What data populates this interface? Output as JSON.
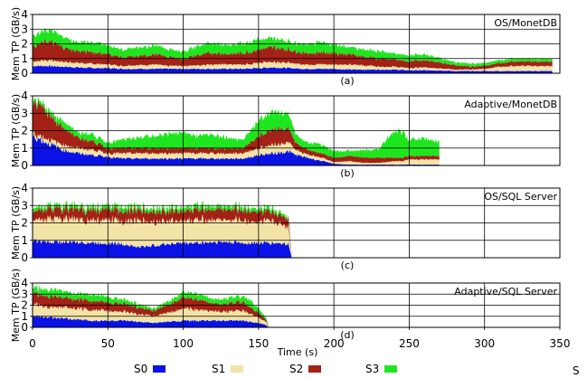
{
  "chart_data": [
    {
      "type": "area",
      "title": "OS/MonetDB",
      "caption": "(a)",
      "ylabel": "Mem TP (GB/s)",
      "ylim": [
        0,
        4
      ],
      "yticks": [
        "0",
        "1",
        "2",
        "3",
        "4"
      ],
      "xlim": [
        0,
        350
      ],
      "grid": true,
      "stacked": true,
      "x": [
        0,
        10,
        20,
        30,
        40,
        50,
        60,
        70,
        80,
        90,
        100,
        110,
        120,
        130,
        140,
        150,
        160,
        170,
        180,
        190,
        200,
        210,
        220,
        230,
        240,
        250,
        260,
        270,
        280,
        290,
        300,
        310,
        320,
        330,
        340,
        345
      ],
      "series": [
        {
          "name": "S0",
          "values": [
            0.5,
            0.5,
            0.45,
            0.4,
            0.35,
            0.35,
            0.3,
            0.3,
            0.3,
            0.3,
            0.3,
            0.3,
            0.3,
            0.3,
            0.3,
            0.35,
            0.4,
            0.35,
            0.3,
            0.3,
            0.3,
            0.25,
            0.25,
            0.25,
            0.25,
            0.2,
            0.2,
            0.2,
            0.15,
            0.15,
            0.15,
            0.15,
            0.15,
            0.15,
            0.15,
            0.15
          ]
        },
        {
          "name": "S1",
          "values": [
            0.3,
            0.4,
            0.35,
            0.3,
            0.3,
            0.25,
            0.2,
            0.25,
            0.3,
            0.2,
            0.2,
            0.25,
            0.3,
            0.3,
            0.3,
            0.35,
            0.4,
            0.35,
            0.3,
            0.3,
            0.3,
            0.35,
            0.3,
            0.2,
            0.2,
            0.15,
            0.2,
            0.15,
            0.1,
            0.1,
            0.15,
            0.3,
            0.35,
            0.35,
            0.35,
            0.35
          ]
        },
        {
          "name": "S2",
          "values": [
            1.0,
            1.3,
            1.0,
            0.8,
            0.8,
            0.7,
            0.6,
            0.6,
            0.7,
            0.6,
            0.5,
            0.7,
            0.8,
            0.7,
            0.8,
            0.9,
            1.0,
            0.9,
            0.8,
            0.8,
            0.8,
            0.7,
            0.6,
            0.55,
            0.5,
            0.45,
            0.5,
            0.4,
            0.3,
            0.2,
            0.2,
            0.25,
            0.3,
            0.3,
            0.3,
            0.3
          ]
        },
        {
          "name": "S3",
          "values": [
            0.7,
            0.8,
            0.7,
            0.6,
            0.7,
            0.6,
            0.5,
            0.6,
            0.6,
            0.5,
            0.5,
            0.6,
            0.7,
            0.6,
            0.7,
            0.7,
            0.6,
            0.6,
            0.6,
            0.7,
            0.6,
            0.5,
            0.5,
            0.5,
            0.4,
            0.4,
            0.4,
            0.3,
            0.2,
            0.2,
            0.2,
            0.2,
            0.2,
            0.2,
            0.2,
            0.2
          ]
        }
      ]
    },
    {
      "type": "area",
      "title": "Adaptive/MonetDB",
      "caption": "(b)",
      "ylabel": "Mem TP (GB/s)",
      "ylim": [
        0,
        4
      ],
      "yticks": [
        "0",
        "1",
        "2",
        "3",
        "4"
      ],
      "xlim": [
        0,
        350
      ],
      "grid": true,
      "stacked": true,
      "x": [
        0,
        5,
        10,
        15,
        20,
        30,
        40,
        50,
        60,
        70,
        80,
        90,
        100,
        110,
        120,
        130,
        140,
        150,
        160,
        170,
        175,
        180,
        190,
        200,
        210,
        220,
        230,
        240,
        245,
        250,
        255,
        260,
        270
      ],
      "series": [
        {
          "name": "S0",
          "values": [
            1.7,
            1.5,
            1.3,
            1.1,
            0.9,
            0.7,
            0.6,
            0.5,
            0.4,
            0.4,
            0.4,
            0.4,
            0.4,
            0.4,
            0.4,
            0.4,
            0.4,
            0.6,
            0.7,
            0.8,
            0.6,
            0.5,
            0.3,
            0.1,
            0.05,
            0.05,
            0.05,
            0.05,
            0.05,
            0.05,
            0.05,
            0.05,
            0.05
          ]
        },
        {
          "name": "S1",
          "values": [
            0.2,
            0.2,
            0.25,
            0.25,
            0.3,
            0.3,
            0.3,
            0.2,
            0.3,
            0.3,
            0.3,
            0.3,
            0.3,
            0.3,
            0.3,
            0.3,
            0.3,
            0.4,
            0.5,
            0.5,
            0.3,
            0.2,
            0.2,
            0.1,
            0.2,
            0.1,
            0.1,
            0.2,
            0.2,
            0.3,
            0.3,
            0.3,
            0.3
          ]
        },
        {
          "name": "S2",
          "values": [
            1.8,
            1.8,
            1.5,
            1.2,
            1.0,
            0.6,
            0.5,
            0.3,
            0.3,
            0.3,
            0.3,
            0.3,
            0.3,
            0.3,
            0.3,
            0.3,
            0.3,
            0.7,
            0.9,
            0.8,
            0.4,
            0.3,
            0.25,
            0.25,
            0.3,
            0.3,
            0.3,
            0.2,
            0.2,
            0.2,
            0.2,
            0.2,
            0.2
          ]
        },
        {
          "name": "S3",
          "values": [
            0.2,
            0.2,
            0.2,
            0.3,
            0.4,
            0.3,
            0.4,
            0.3,
            0.5,
            0.6,
            0.7,
            0.8,
            0.9,
            0.7,
            0.8,
            0.6,
            0.5,
            0.9,
            1.0,
            0.9,
            0.5,
            0.4,
            0.5,
            0.4,
            0.3,
            0.4,
            0.5,
            1.6,
            1.5,
            0.9,
            1.0,
            1.0,
            0.8
          ]
        }
      ]
    },
    {
      "type": "area",
      "title": "OS/SQL Server",
      "caption": "(c)",
      "ylabel": "Mem TP (GB/s)",
      "ylim": [
        0,
        4
      ],
      "yticks": [
        "0",
        "1",
        "2",
        "3",
        "4"
      ],
      "xlim": [
        0,
        350
      ],
      "grid": true,
      "stacked": true,
      "x": [
        0,
        10,
        20,
        30,
        40,
        50,
        60,
        70,
        80,
        90,
        100,
        110,
        120,
        130,
        140,
        150,
        160,
        170,
        172
      ],
      "series": [
        {
          "name": "S0",
          "values": [
            1.0,
            0.9,
            0.9,
            0.9,
            0.85,
            0.85,
            0.8,
            0.6,
            0.7,
            0.8,
            0.85,
            0.85,
            0.9,
            0.9,
            0.85,
            0.85,
            0.85,
            0.8,
            0.0
          ]
        },
        {
          "name": "S1",
          "values": [
            1.2,
            1.3,
            1.3,
            1.3,
            1.3,
            1.35,
            1.3,
            1.5,
            1.4,
            1.3,
            1.3,
            1.3,
            1.3,
            1.25,
            1.3,
            1.2,
            1.2,
            1.0,
            0.0
          ]
        },
        {
          "name": "S2",
          "values": [
            0.5,
            0.6,
            0.6,
            0.6,
            0.6,
            0.6,
            0.6,
            0.6,
            0.6,
            0.6,
            0.6,
            0.6,
            0.6,
            0.6,
            0.6,
            0.6,
            0.5,
            0.5,
            0.0
          ]
        },
        {
          "name": "S3",
          "values": [
            0.2,
            0.2,
            0.2,
            0.2,
            0.2,
            0.2,
            0.25,
            0.2,
            0.2,
            0.2,
            0.2,
            0.25,
            0.2,
            0.2,
            0.2,
            0.2,
            0.2,
            0.1,
            0.0
          ]
        }
      ]
    },
    {
      "type": "area",
      "title": "Adaptive/SQL Server",
      "caption": "(d)",
      "ylabel": "Mem TP (GB/s)",
      "xlabel": "Time (s)",
      "ylim": [
        0,
        4
      ],
      "yticks": [
        "0",
        "1",
        "2",
        "3",
        "4"
      ],
      "xlim": [
        0,
        350
      ],
      "xticks": [
        "0",
        "50",
        "100",
        "150",
        "200",
        "250",
        "300",
        "350"
      ],
      "grid": true,
      "stacked": true,
      "x": [
        0,
        10,
        20,
        30,
        40,
        50,
        60,
        70,
        80,
        90,
        100,
        110,
        120,
        130,
        140,
        145,
        150,
        155,
        157
      ],
      "series": [
        {
          "name": "S0",
          "values": [
            1.1,
            0.9,
            0.8,
            0.7,
            0.6,
            0.6,
            0.6,
            0.5,
            0.4,
            0.5,
            0.6,
            0.6,
            0.6,
            0.6,
            0.6,
            0.5,
            0.4,
            0.2,
            0.0
          ]
        },
        {
          "name": "S1",
          "values": [
            1.1,
            0.9,
            1.0,
            1.0,
            1.0,
            0.9,
            0.8,
            0.7,
            0.6,
            0.8,
            1.1,
            1.0,
            0.8,
            0.8,
            0.9,
            0.7,
            0.5,
            0.3,
            0.0
          ]
        },
        {
          "name": "S2",
          "values": [
            1.0,
            1.0,
            0.9,
            0.8,
            0.8,
            0.8,
            0.7,
            0.6,
            0.5,
            0.7,
            1.0,
            0.9,
            0.7,
            0.7,
            0.8,
            0.6,
            0.4,
            0.2,
            0.0
          ]
        },
        {
          "name": "S3",
          "values": [
            0.5,
            0.6,
            0.6,
            0.5,
            0.6,
            0.5,
            0.4,
            0.3,
            0.2,
            0.3,
            0.5,
            0.5,
            0.4,
            0.5,
            0.5,
            0.6,
            0.4,
            0.2,
            0.0
          ]
        }
      ]
    }
  ],
  "legend": [
    {
      "label": "S0",
      "color": "#0a12e6"
    },
    {
      "label": "S1",
      "color": "#f2e4a6"
    },
    {
      "label": "S2",
      "color": "#a32116"
    },
    {
      "label": "S3",
      "color": "#1ee61e"
    }
  ],
  "stray_text": "S"
}
